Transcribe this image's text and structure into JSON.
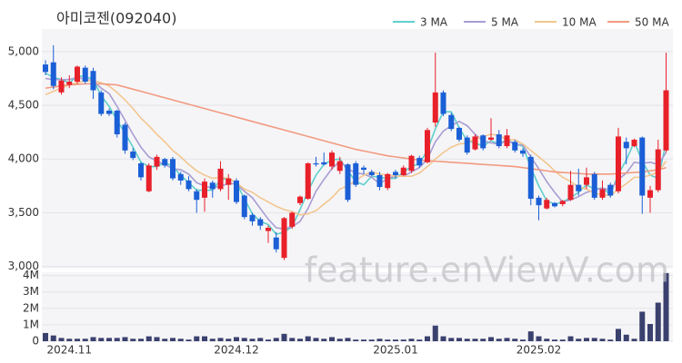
{
  "chart_data": {
    "type": "candlestick",
    "title": "아미코젠(092040)",
    "watermark": "feature.enViewV.com",
    "categories": [
      null,
      null,
      null,
      "2024.11",
      null,
      null,
      null,
      null,
      null,
      null,
      null,
      null,
      null,
      null,
      null,
      null,
      null,
      null,
      null,
      null,
      null,
      null,
      null,
      null,
      "2024.12",
      null,
      null,
      null,
      null,
      null,
      null,
      null,
      null,
      null,
      null,
      null,
      null,
      null,
      null,
      null,
      null,
      null,
      null,
      null,
      "2025.01",
      null,
      null,
      null,
      null,
      null,
      null,
      null,
      null,
      null,
      null,
      null,
      null,
      null,
      null,
      null,
      null,
      null,
      "2025.02",
      null,
      null,
      null,
      null,
      null,
      null,
      null,
      null,
      null,
      null,
      null,
      null,
      null,
      null,
      null,
      null
    ],
    "open": [
      4880,
      4900,
      4620,
      4690,
      4720,
      4850,
      4820,
      4620,
      4450,
      4450,
      4320,
      4070,
      3960,
      3700,
      3930,
      4000,
      4000,
      3860,
      3800,
      3700,
      3640,
      3780,
      3720,
      3760,
      3800,
      3660,
      3480,
      3440,
      3330,
      3270,
      3080,
      3370,
      3590,
      3630,
      3960,
      3970,
      3930,
      3890,
      3950,
      3960,
      3920,
      3880,
      3850,
      3730,
      3880,
      3850,
      3890,
      4010,
      3970,
      4340,
      4620,
      4410,
      4290,
      4200,
      4090,
      4220,
      4180,
      4230,
      4120,
      4160,
      4080,
      4020,
      3640,
      3540,
      3590,
      3580,
      3620,
      3760,
      3760,
      3860,
      3640,
      3760,
      3700,
      4160,
      4120,
      4200,
      3640,
      3710,
      4080
    ],
    "high": [
      4920,
      5060,
      4760,
      4780,
      4870,
      4870,
      4850,
      4640,
      4470,
      4460,
      4340,
      4100,
      3970,
      3960,
      4040,
      4010,
      4020,
      3880,
      3840,
      3720,
      3820,
      3800,
      3980,
      3860,
      3820,
      3670,
      3500,
      3460,
      3380,
      3320,
      3460,
      3510,
      3660,
      3970,
      4020,
      4060,
      4080,
      4020,
      3960,
      3980,
      3940,
      3900,
      3880,
      3870,
      3900,
      3940,
      4040,
      4030,
      4290,
      4990,
      4640,
      4430,
      4300,
      4220,
      4230,
      4230,
      4380,
      4270,
      4280,
      4180,
      4100,
      4040,
      3660,
      3640,
      3600,
      3620,
      3890,
      3910,
      3920,
      3880,
      3800,
      3780,
      4290,
      4200,
      4190,
      4210,
      3750,
      4180,
      4990
    ],
    "low": [
      4780,
      4650,
      4600,
      4660,
      4700,
      4700,
      4560,
      4400,
      4400,
      4200,
      4050,
      3990,
      3800,
      3690,
      3900,
      3920,
      3800,
      3760,
      3700,
      3500,
      3510,
      3640,
      3700,
      3620,
      3580,
      3440,
      3380,
      3340,
      3220,
      3130,
      3060,
      3350,
      3570,
      3620,
      3930,
      3940,
      3900,
      3860,
      3600,
      3740,
      3860,
      3840,
      3710,
      3710,
      3820,
      3840,
      3870,
      3920,
      3960,
      4300,
      4400,
      4260,
      4160,
      4040,
      4080,
      4080,
      4170,
      4100,
      4100,
      4060,
      4020,
      3570,
      3430,
      3530,
      3550,
      3560,
      3610,
      3660,
      3720,
      3620,
      3620,
      3640,
      3680,
      3950,
      4110,
      3490,
      3500,
      3690,
      4060
    ],
    "close": [
      4810,
      4680,
      4730,
      4720,
      4860,
      4720,
      4640,
      4420,
      4420,
      4230,
      4080,
      4010,
      3830,
      3940,
      4020,
      3940,
      3820,
      3800,
      3720,
      3620,
      3790,
      3720,
      3910,
      3820,
      3600,
      3460,
      3420,
      3380,
      3360,
      3160,
      3450,
      3500,
      3650,
      3960,
      3950,
      3950,
      4060,
      3980,
      3620,
      3760,
      3900,
      3850,
      3740,
      3860,
      3850,
      3920,
      4030,
      3940,
      4270,
      4620,
      4420,
      4280,
      4180,
      4060,
      4210,
      4100,
      4200,
      4120,
      4220,
      4080,
      4050,
      3630,
      3570,
      3620,
      3560,
      3610,
      3760,
      3700,
      3830,
      3640,
      3720,
      3660,
      4210,
      4100,
      4180,
      3660,
      3710,
      4090,
      4640
    ],
    "up_color": "#e8202a",
    "down_color": "#1b5fd6",
    "volume": [
      500000,
      350000,
      200000,
      150000,
      150000,
      150000,
      250000,
      200000,
      200000,
      200000,
      250000,
      150000,
      150000,
      300000,
      250000,
      150000,
      200000,
      150000,
      100000,
      300000,
      300000,
      150000,
      200000,
      150000,
      250000,
      200000,
      150000,
      200000,
      100000,
      200000,
      450000,
      200000,
      150000,
      300000,
      200000,
      150000,
      250000,
      150000,
      200000,
      100000,
      100000,
      100000,
      150000,
      100000,
      100000,
      100000,
      150000,
      100000,
      300000,
      950000,
      300000,
      200000,
      200000,
      150000,
      150000,
      150000,
      250000,
      150000,
      200000,
      150000,
      100000,
      600000,
      300000,
      150000,
      100000,
      100000,
      300000,
      150000,
      200000,
      200000,
      150000,
      100000,
      750000,
      400000,
      150000,
      1800000,
      1050000,
      2350000,
      4150000
    ],
    "volume_color": "#3b416e",
    "series": [
      {
        "name": "3 MA",
        "color": "#5fcfcc",
        "values": [
          4800,
          4760,
          4740,
          4710,
          4770,
          4770,
          4740,
          4590,
          4490,
          4360,
          4240,
          4110,
          3970,
          3930,
          3930,
          3970,
          3930,
          3850,
          3780,
          3710,
          3710,
          3710,
          3810,
          3820,
          3780,
          3630,
          3490,
          3420,
          3390,
          3300,
          3320,
          3370,
          3530,
          3700,
          3850,
          3950,
          3990,
          4000,
          3890,
          3790,
          3760,
          3840,
          3830,
          3820,
          3820,
          3880,
          3930,
          3960,
          4080,
          4280,
          4440,
          4440,
          4290,
          4170,
          4150,
          4120,
          4170,
          4140,
          4180,
          4140,
          4120,
          3920,
          3750,
          3610,
          3580,
          3600,
          3640,
          3690,
          3760,
          3720,
          3730,
          3670,
          3860,
          3990,
          4160,
          3980,
          3850,
          3820,
          4150
        ]
      },
      {
        "name": "5 MA",
        "color": "#a99cd4",
        "values": [
          4750,
          4740,
          4740,
          4740,
          4760,
          4740,
          4730,
          4660,
          4610,
          4490,
          4360,
          4230,
          4110,
          4020,
          3980,
          3950,
          3910,
          3900,
          3860,
          3780,
          3750,
          3730,
          3750,
          3770,
          3770,
          3700,
          3640,
          3540,
          3440,
          3360,
          3350,
          3370,
          3420,
          3540,
          3700,
          3810,
          3910,
          3980,
          3910,
          3870,
          3860,
          3830,
          3770,
          3820,
          3840,
          3840,
          3880,
          3920,
          4000,
          4160,
          4260,
          4310,
          4350,
          4310,
          4230,
          4170,
          4150,
          4140,
          4170,
          4140,
          4130,
          4020,
          3910,
          3790,
          3690,
          3600,
          3620,
          3650,
          3690,
          3710,
          3730,
          3710,
          3810,
          3870,
          3970,
          3960,
          3970,
          3950,
          4060
        ]
      },
      {
        "name": "10 MA",
        "color": "#f3c68f",
        "values": [
          4600,
          4630,
          4660,
          4690,
          4710,
          4730,
          4730,
          4710,
          4680,
          4620,
          4550,
          4470,
          4380,
          4310,
          4230,
          4160,
          4080,
          4020,
          3950,
          3890,
          3850,
          3820,
          3830,
          3820,
          3780,
          3720,
          3690,
          3640,
          3600,
          3560,
          3530,
          3510,
          3480,
          3490,
          3520,
          3580,
          3640,
          3720,
          3750,
          3800,
          3850,
          3880,
          3860,
          3850,
          3840,
          3840,
          3840,
          3870,
          3930,
          4000,
          4060,
          4110,
          4140,
          4150,
          4190,
          4210,
          4230,
          4220,
          4180,
          4180,
          4140,
          4080,
          4020,
          3960,
          3890,
          3830,
          3790,
          3740,
          3720,
          3680,
          3670,
          3660,
          3720,
          3770,
          3830,
          3830,
          3850,
          3880,
          3980
        ]
      },
      {
        "name": "50 MA",
        "color": "#f29a80",
        "values": [
          4660,
          4670,
          4680,
          4690,
          4695,
          4700,
          4700,
          4700,
          4695,
          4690,
          4670,
          4650,
          4630,
          4610,
          4590,
          4570,
          4550,
          4530,
          4510,
          4490,
          4470,
          4450,
          4430,
          4410,
          4390,
          4370,
          4350,
          4330,
          4310,
          4290,
          4270,
          4250,
          4230,
          4210,
          4190,
          4170,
          4150,
          4130,
          4110,
          4090,
          4075,
          4060,
          4045,
          4030,
          4020,
          4010,
          4000,
          3990,
          3985,
          3980,
          3975,
          3970,
          3965,
          3960,
          3955,
          3950,
          3945,
          3940,
          3935,
          3930,
          3920,
          3910,
          3900,
          3890,
          3880,
          3875,
          3870,
          3865,
          3860,
          3860,
          3860,
          3860,
          3865,
          3870,
          3875,
          3880,
          3890,
          3900,
          3920
        ]
      }
    ],
    "ylim": [
      2980,
      5210
    ],
    "yticks": [
      {
        "value": 3000,
        "label": "3,000"
      },
      {
        "value": 3500,
        "label": "3,500"
      },
      {
        "value": 4000,
        "label": "4,000"
      },
      {
        "value": 4500,
        "label": "4,500"
      },
      {
        "value": 5000,
        "label": "5,000"
      }
    ],
    "y2lim": [
      0,
      4200000
    ],
    "y2ticks": [
      0,
      {
        "value": 1000000,
        "label": "1M"
      },
      {
        "value": 2000000,
        "label": "2M"
      },
      {
        "value": 3000000,
        "label": "3M"
      },
      {
        "value": 4000000,
        "label": "4M"
      }
    ],
    "grid": true,
    "legend": "top-right"
  }
}
